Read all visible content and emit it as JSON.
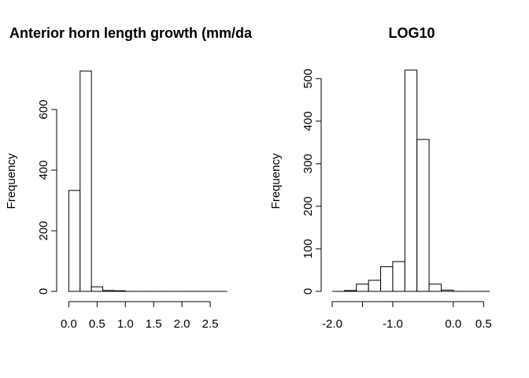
{
  "chart_data": [
    {
      "type": "bar",
      "title": "Anterior horn length growth (mm/da",
      "xlabel": "",
      "ylabel": "Frequency",
      "xlim": [
        -0.05,
        2.8
      ],
      "ylim": [
        0,
        730
      ],
      "x_ticks": [
        0.0,
        0.5,
        1.0,
        1.5,
        2.0,
        2.5
      ],
      "x_tick_labels": [
        "0.0",
        "0.5",
        "1.0",
        "1.5",
        "2.0",
        "2.5"
      ],
      "y_ticks": [
        0,
        200,
        400,
        600
      ],
      "y_tick_labels": [
        "0",
        "200",
        "400",
        "600"
      ],
      "bins": [
        {
          "x0": 0.0,
          "x1": 0.2,
          "value": 333
        },
        {
          "x0": 0.2,
          "x1": 0.4,
          "value": 727
        },
        {
          "x0": 0.4,
          "x1": 0.6,
          "value": 15
        },
        {
          "x0": 0.6,
          "x1": 0.8,
          "value": 3
        },
        {
          "x0": 0.8,
          "x1": 1.0,
          "value": 2
        },
        {
          "x0": 1.0,
          "x1": 1.2,
          "value": 0
        },
        {
          "x0": 1.2,
          "x1": 1.4,
          "value": 0
        },
        {
          "x0": 1.4,
          "x1": 1.6,
          "value": 0
        },
        {
          "x0": 1.6,
          "x1": 1.8,
          "value": 0
        },
        {
          "x0": 1.8,
          "x1": 2.0,
          "value": 0
        },
        {
          "x0": 2.0,
          "x1": 2.2,
          "value": 0
        },
        {
          "x0": 2.2,
          "x1": 2.4,
          "value": 0
        },
        {
          "x0": 2.4,
          "x1": 2.6,
          "value": 0
        },
        {
          "x0": 2.6,
          "x1": 2.8,
          "value": 0
        }
      ]
    },
    {
      "type": "bar",
      "title": "LOG10",
      "xlabel": "",
      "ylabel": "Frequency",
      "xlim": [
        -2.1,
        0.6
      ],
      "ylim": [
        0,
        520
      ],
      "x_ticks": [
        -2.0,
        -1.0,
        0.0,
        0.5
      ],
      "x_tick_labels": [
        "-2.0",
        "-1.0",
        "0.0",
        "0.5"
      ],
      "x_minor_ticks": [
        -1.5
      ],
      "y_ticks": [
        0,
        100,
        200,
        300,
        400,
        500
      ],
      "y_tick_labels": [
        "0",
        "100",
        "200",
        "300",
        "400",
        "500"
      ],
      "bins": [
        {
          "x0": -2.0,
          "x1": -1.8,
          "value": 0
        },
        {
          "x0": -1.8,
          "x1": -1.6,
          "value": 2
        },
        {
          "x0": -1.6,
          "x1": -1.4,
          "value": 17
        },
        {
          "x0": -1.4,
          "x1": -1.2,
          "value": 26
        },
        {
          "x0": -1.2,
          "x1": -1.0,
          "value": 58
        },
        {
          "x0": -1.0,
          "x1": -0.8,
          "value": 70
        },
        {
          "x0": -0.8,
          "x1": -0.6,
          "value": 520
        },
        {
          "x0": -0.6,
          "x1": -0.4,
          "value": 357
        },
        {
          "x0": -0.4,
          "x1": -0.2,
          "value": 17
        },
        {
          "x0": -0.2,
          "x1": 0.0,
          "value": 3
        },
        {
          "x0": 0.0,
          "x1": 0.2,
          "value": 0
        },
        {
          "x0": 0.2,
          "x1": 0.4,
          "value": 0
        },
        {
          "x0": 0.4,
          "x1": 0.6,
          "value": 0
        }
      ]
    }
  ]
}
